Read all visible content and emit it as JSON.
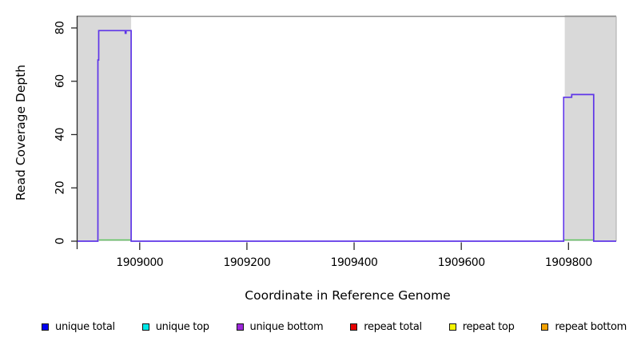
{
  "chart_data": {
    "type": "line",
    "title": "",
    "xlabel": "Coordinate in Reference Genome",
    "ylabel": "Read Coverage Depth",
    "xlim": [
      1908884,
      1909889
    ],
    "ylim": [
      0,
      80
    ],
    "x_ticks": [
      1909000,
      1909200,
      1909400,
      1909600,
      1909800
    ],
    "x_tick_labels": [
      "1909000",
      "1909200",
      "1909400",
      "1909600",
      "1909800"
    ],
    "y_ticks": [
      0,
      20,
      40,
      60,
      80
    ],
    "y_tick_labels": [
      "0",
      "20",
      "40",
      "60",
      "80"
    ],
    "grid": false,
    "legend_position": "bottom",
    "highlight_regions": [
      {
        "x0": 1908884,
        "x1": 1908984,
        "color": "#d9d9d9"
      },
      {
        "x0": 1909793,
        "x1": 1909889,
        "color": "#d9d9d9"
      }
    ],
    "series": [
      {
        "name": "unique bottom coverage",
        "color": "#5e35e8",
        "points": [
          [
            1908884,
            0
          ],
          [
            1908922,
            0
          ],
          [
            1908922,
            68
          ],
          [
            1908923.5,
            68
          ],
          [
            1908923.5,
            79
          ],
          [
            1908973,
            79
          ],
          [
            1908973,
            78
          ],
          [
            1908974.5,
            78
          ],
          [
            1908974.5,
            79
          ],
          [
            1908984,
            79
          ],
          [
            1908984,
            0
          ],
          [
            1909791,
            0
          ],
          [
            1909791,
            54
          ],
          [
            1909806,
            54
          ],
          [
            1909806,
            55
          ],
          [
            1909847,
            55
          ],
          [
            1909847,
            0
          ],
          [
            1909889,
            0
          ]
        ]
      },
      {
        "name": "zero-level green segments",
        "color": "#5ec45e",
        "value": 0,
        "segments": [
          [
            1908924,
            1908984
          ],
          [
            1909792,
            1909846
          ]
        ]
      }
    ],
    "frame": {
      "top_border_color": "#8c8c8c",
      "right_border_color": "#b3b3b3",
      "axis_color": "#2a2a2a"
    },
    "legend": {
      "items": [
        {
          "label": "unique total",
          "color": "#0000f2"
        },
        {
          "label": "unique top",
          "color": "#00e8e8"
        },
        {
          "label": "unique bottom",
          "color": "#9c27d9"
        },
        {
          "label": "repeat total",
          "color": "#e60000"
        },
        {
          "label": "repeat top",
          "color": "#f5f500"
        },
        {
          "label": "repeat bottom",
          "color": "#f2a202"
        }
      ]
    }
  }
}
